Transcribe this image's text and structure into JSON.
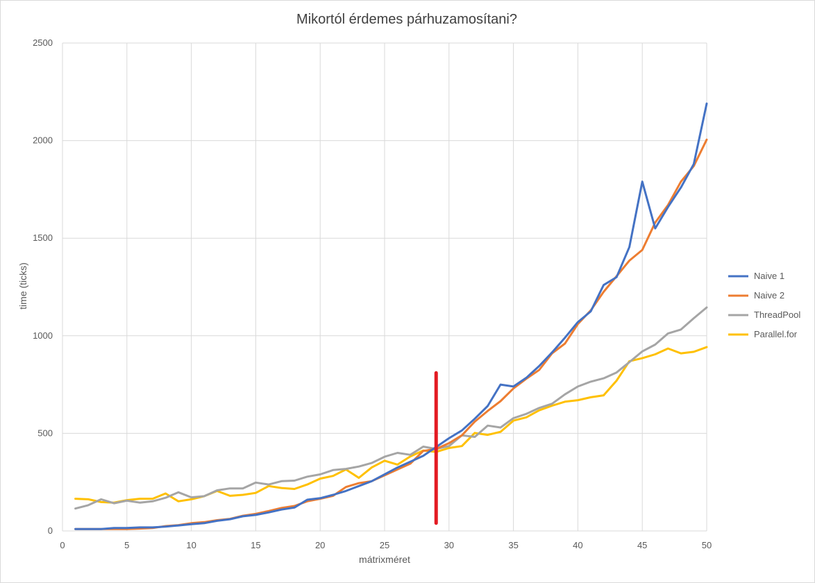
{
  "chart_data": {
    "type": "line",
    "title": "Mikortól érdemes párhuzamosítani?",
    "xlabel": "mátrixméret",
    "ylabel": "time (ticks)",
    "xlim": [
      0,
      50
    ],
    "ylim": [
      0,
      2500
    ],
    "xticks": [
      0,
      5,
      10,
      15,
      20,
      25,
      30,
      35,
      40,
      45,
      50
    ],
    "yticks": [
      0,
      500,
      1000,
      1500,
      2000,
      2500
    ],
    "grid": true,
    "legend_position": "right",
    "x": [
      1,
      2,
      3,
      4,
      5,
      6,
      7,
      8,
      9,
      10,
      11,
      12,
      13,
      14,
      15,
      16,
      17,
      18,
      19,
      20,
      21,
      22,
      23,
      24,
      25,
      26,
      27,
      28,
      29,
      30,
      31,
      32,
      33,
      34,
      35,
      36,
      37,
      38,
      39,
      40,
      41,
      42,
      43,
      44,
      45,
      46,
      47,
      48,
      49,
      50
    ],
    "series": [
      {
        "name": "Naive 1",
        "color": "#4472c4",
        "values": [
          10,
          10,
          10,
          15,
          15,
          18,
          18,
          22,
          28,
          35,
          40,
          52,
          60,
          75,
          82,
          95,
          110,
          120,
          160,
          168,
          185,
          205,
          230,
          255,
          290,
          325,
          355,
          385,
          430,
          475,
          515,
          575,
          640,
          750,
          740,
          785,
          845,
          915,
          990,
          1070,
          1125,
          1260,
          1300,
          1455,
          1790,
          1550,
          1660,
          1760,
          1880,
          2190
        ]
      },
      {
        "name": "Naive 2",
        "color": "#ed7d31",
        "values": [
          10,
          10,
          10,
          10,
          10,
          12,
          15,
          25,
          30,
          40,
          45,
          55,
          62,
          78,
          88,
          102,
          118,
          128,
          152,
          165,
          180,
          225,
          245,
          255,
          285,
          315,
          345,
          410,
          420,
          450,
          490,
          560,
          615,
          665,
          730,
          780,
          825,
          910,
          960,
          1060,
          1130,
          1225,
          1305,
          1385,
          1440,
          1580,
          1670,
          1790,
          1870,
          2005
        ]
      },
      {
        "name": "ThreadPool",
        "color": "#a5a5a5",
        "values": [
          115,
          132,
          162,
          142,
          155,
          145,
          152,
          170,
          198,
          172,
          178,
          208,
          218,
          218,
          248,
          238,
          255,
          258,
          278,
          290,
          312,
          318,
          330,
          348,
          380,
          400,
          390,
          432,
          420,
          435,
          490,
          482,
          540,
          530,
          578,
          600,
          630,
          652,
          700,
          740,
          765,
          782,
          812,
          865,
          920,
          955,
          1012,
          1032,
          1090,
          1145
        ]
      },
      {
        "name": "Parallel.for",
        "color": "#ffc000",
        "values": [
          165,
          162,
          148,
          145,
          158,
          165,
          165,
          192,
          152,
          162,
          178,
          205,
          180,
          185,
          195,
          230,
          220,
          215,
          238,
          268,
          282,
          315,
          272,
          325,
          360,
          340,
          382,
          412,
          405,
          425,
          435,
          502,
          492,
          508,
          565,
          582,
          618,
          642,
          662,
          670,
          685,
          695,
          770,
          870,
          885,
          905,
          935,
          910,
          918,
          942
        ]
      }
    ],
    "annotation": {
      "type": "vertical-marker",
      "x": 29,
      "y_from": 40,
      "y_to": 810,
      "color": "#e31b23"
    }
  }
}
